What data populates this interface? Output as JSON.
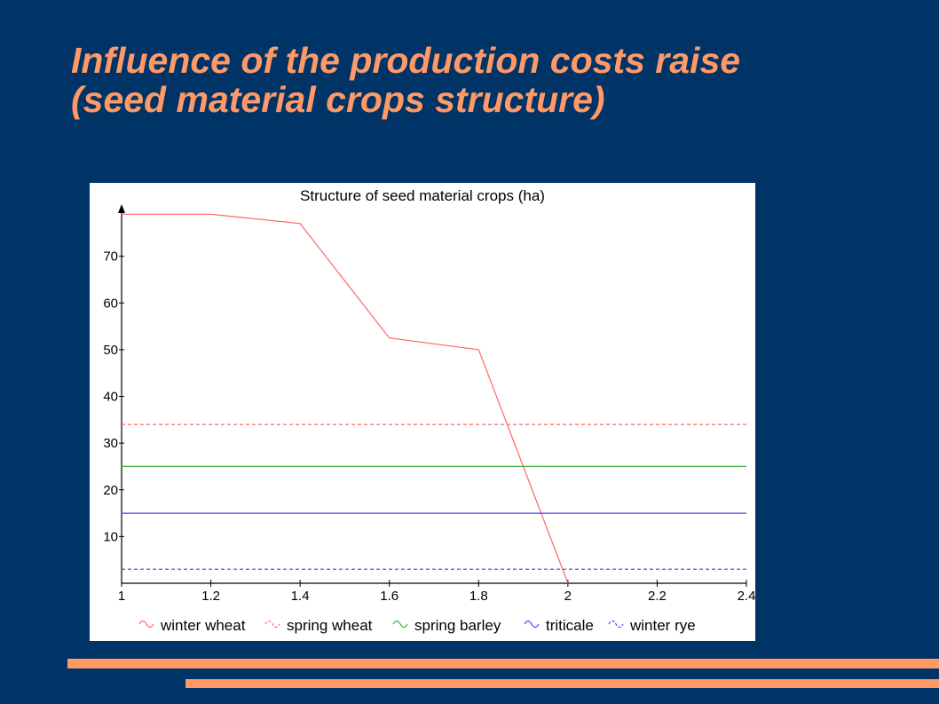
{
  "slide": {
    "title_line1": "Influence of the production costs raise",
    "title_line2": "(seed material crops structure)",
    "accent_color": "#ff9966",
    "background_color": "#003366"
  },
  "chart_data": {
    "type": "line",
    "title": "Structure of seed material crops (ha)",
    "xlabel": "",
    "ylabel": "",
    "xlim": [
      1,
      2.4
    ],
    "ylim": [
      0,
      80
    ],
    "x_ticks": [
      "1",
      "1.2",
      "1.4",
      "1.6",
      "1.8",
      "2",
      "2.2",
      "2.4"
    ],
    "y_ticks": [
      "10",
      "20",
      "30",
      "40",
      "50",
      "60",
      "70"
    ],
    "grid": false,
    "legend_position": "bottom",
    "series": [
      {
        "name": "winter wheat",
        "color": "#ff6666",
        "dash": "solid",
        "x": [
          1,
          1.2,
          1.4,
          1.6,
          1.8,
          2
        ],
        "y": [
          79,
          79,
          77,
          52.5,
          50,
          0
        ]
      },
      {
        "name": "spring wheat",
        "color": "#ff6666",
        "dash": "dashed",
        "x": [
          1,
          2.4
        ],
        "y": [
          34,
          34
        ]
      },
      {
        "name": "spring barley",
        "color": "#44aa44",
        "dash": "solid",
        "x": [
          1,
          2.4
        ],
        "y": [
          25,
          25
        ]
      },
      {
        "name": "triticale",
        "color": "#4444ee",
        "dash": "solid",
        "x": [
          1,
          2.4
        ],
        "y": [
          15,
          15
        ]
      },
      {
        "name": "winter rye",
        "color": "#4444ee",
        "dash": "dashed",
        "x": [
          1,
          2.4
        ],
        "y": [
          3,
          3
        ]
      }
    ]
  }
}
